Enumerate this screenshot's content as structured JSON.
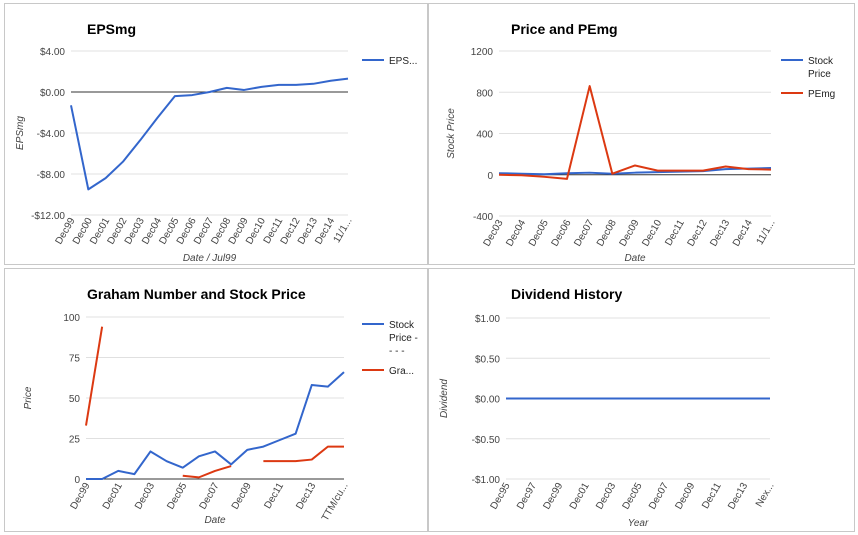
{
  "colors": {
    "blue": "#3366cc",
    "red": "#dc3912",
    "grid": "#e0e0e0",
    "axis": "#333333"
  },
  "chart_data": [
    {
      "id": "epsmg",
      "type": "line",
      "title": "EPSmg",
      "xlabel": "Date / Jul99",
      "ylabel": "EPSmg",
      "ylim": [
        -12,
        4
      ],
      "yticks": [
        4,
        0,
        -4,
        -8,
        -12
      ],
      "ytick_labels": [
        "$4.00",
        "$0.00",
        "-$4.00",
        "-$8.00",
        "-$12.00"
      ],
      "x_tick_labels": [
        "Dec99",
        "Dec00",
        "Dec01",
        "Dec02",
        "Dec03",
        "Dec04",
        "Dec05",
        "Dec06",
        "Dec07",
        "Dec08",
        "Dec09",
        "Dec10",
        "Dec11",
        "Dec12",
        "Dec13",
        "Dec14",
        "11/1..."
      ],
      "grid": true,
      "legend_position": "right",
      "series": [
        {
          "name": "EPS...",
          "color": "#3366cc",
          "values": [
            -1.3,
            -9.5,
            -8.4,
            -6.8,
            -4.7,
            -2.5,
            -0.4,
            -0.3,
            0.0,
            0.4,
            0.2,
            0.5,
            0.7,
            0.7,
            0.8,
            1.1,
            1.3
          ]
        }
      ]
    },
    {
      "id": "price-pemg",
      "type": "line",
      "title": "Price and PEmg",
      "xlabel": "Date",
      "ylabel": "Stock Price",
      "ylim": [
        -400,
        1200
      ],
      "yticks": [
        1200,
        800,
        400,
        0,
        -400
      ],
      "ytick_labels": [
        "1200",
        "800",
        "400",
        "0",
        "-400"
      ],
      "x_tick_labels": [
        "Dec03",
        "Dec04",
        "Dec05",
        "Dec06",
        "Dec07",
        "Dec08",
        "Dec09",
        "Dec10",
        "Dec11",
        "Dec12",
        "Dec13",
        "Dec14",
        "11/1..."
      ],
      "grid": true,
      "legend_position": "right",
      "series": [
        {
          "name": "Stock Price",
          "color": "#3366cc",
          "values": [
            15,
            10,
            5,
            15,
            20,
            10,
            20,
            25,
            30,
            35,
            55,
            60,
            65
          ]
        },
        {
          "name": "PEmg",
          "color": "#dc3912",
          "values": [
            0,
            -5,
            -20,
            -40,
            860,
            10,
            90,
            40,
            40,
            40,
            80,
            55,
            50
          ]
        }
      ]
    },
    {
      "id": "graham",
      "type": "line",
      "title": "Graham Number and Stock Price",
      "xlabel": "Date",
      "ylabel": "Price",
      "ylim": [
        0,
        100
      ],
      "yticks": [
        100,
        75,
        50,
        25,
        0
      ],
      "ytick_labels": [
        "100",
        "75",
        "50",
        "25",
        "0"
      ],
      "x_tick_labels": [
        "Dec99",
        "",
        "Dec01",
        "",
        "Dec03",
        "",
        "Dec05",
        "",
        "Dec07",
        "",
        "Dec09",
        "",
        "Dec11",
        "",
        "Dec13",
        "",
        "TTM/cu..."
      ],
      "grid": true,
      "legend_position": "right",
      "series": [
        {
          "name": "Stock Price - - - -",
          "legend_label": "Stock Price - - - -",
          "color": "#3366cc",
          "values": [
            0,
            0,
            5,
            3,
            17,
            11,
            7,
            14,
            17,
            9,
            18,
            20,
            24,
            28,
            58,
            57,
            66
          ]
        },
        {
          "name": "Gra...",
          "color": "#dc3912",
          "values": [
            33,
            94,
            null,
            null,
            null,
            null,
            2,
            1,
            5,
            8,
            null,
            11,
            11,
            11,
            12,
            20,
            20
          ]
        }
      ]
    },
    {
      "id": "dividend",
      "type": "line",
      "title": "Dividend History",
      "xlabel": "Year",
      "ylabel": "Dividend",
      "ylim": [
        -1,
        1
      ],
      "yticks": [
        1,
        0.5,
        0,
        -0.5,
        -1
      ],
      "ytick_labels": [
        "$1.00",
        "$0.50",
        "$0.00",
        "-$0.50",
        "-$1.00"
      ],
      "x_tick_labels": [
        "Dec95",
        "Dec97",
        "Dec99",
        "Dec01",
        "Dec03",
        "Dec05",
        "Dec07",
        "Dec09",
        "Dec11",
        "Dec13",
        "Nex..."
      ],
      "grid": true,
      "legend_position": "none",
      "series": [
        {
          "name": "",
          "color": "#3366cc",
          "values": [
            0,
            0,
            0,
            0,
            0,
            0,
            0,
            0,
            0,
            0,
            0
          ]
        }
      ]
    }
  ]
}
